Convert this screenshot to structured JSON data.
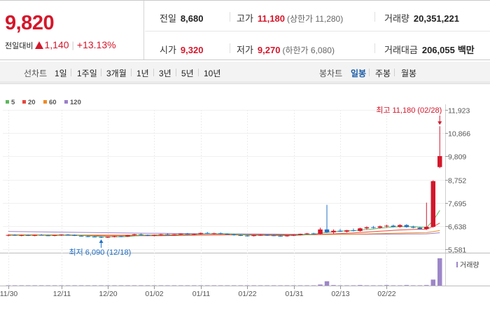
{
  "quote": {
    "price": "9,820",
    "change_label": "전일대비",
    "change_amount": "1,140",
    "change_pct": "+13.13%",
    "prev_close_label": "전일",
    "prev_close": "8,680",
    "high_label": "고가",
    "high": "11,180",
    "upper_limit_label": "(상한가 11,280)",
    "volume_label": "거래량",
    "volume": "20,351,221",
    "open_label": "시가",
    "open": "9,320",
    "low_label": "저가",
    "low": "9,270",
    "lower_limit_label": "(하한가 6,080)",
    "value_label": "거래대금",
    "value": "206,055",
    "value_unit": "백만"
  },
  "toolbar": {
    "line_chart_label": "선차트",
    "line_periods": [
      "1일",
      "1주일",
      "3개월",
      "1년",
      "3년",
      "5년",
      "10년"
    ],
    "candle_chart_label": "봉차트",
    "candle_periods": [
      "일봉",
      "주봉",
      "월봉"
    ],
    "active_candle_period": "일봉"
  },
  "chart_data": {
    "type": "candlestick",
    "moving_average_legend": [
      {
        "name": "5",
        "color": "#5cb85c"
      },
      {
        "name": "20",
        "color": "#e8473e"
      },
      {
        "name": "60",
        "color": "#f08a24"
      },
      {
        "name": "120",
        "color": "#9b7fc8"
      }
    ],
    "y_ticks": [
      "11,923",
      "10,866",
      "9,809",
      "8,752",
      "7,695",
      "6,638",
      "5,581"
    ],
    "ylim": [
      5581,
      11923
    ],
    "x_tick_labels": [
      "11/30",
      "12/11",
      "12/20",
      "01/02",
      "01/11",
      "01/22",
      "01/31",
      "02/13",
      "02/22"
    ],
    "high_annotation": "최고 11,180 (02/28)",
    "low_annotation": "최저 6,090 (12/18)",
    "volume_label": "거래량",
    "up_color": "#d4172b",
    "down_color": "#1f6fc5",
    "candles": [
      {
        "o": 6210,
        "h": 6250,
        "l": 6170,
        "c": 6230
      },
      {
        "o": 6230,
        "h": 6260,
        "l": 6190,
        "c": 6200
      },
      {
        "o": 6200,
        "h": 6240,
        "l": 6170,
        "c": 6220
      },
      {
        "o": 6220,
        "h": 6250,
        "l": 6180,
        "c": 6190
      },
      {
        "o": 6190,
        "h": 6240,
        "l": 6170,
        "c": 6230
      },
      {
        "o": 6230,
        "h": 6270,
        "l": 6200,
        "c": 6210
      },
      {
        "o": 6210,
        "h": 6240,
        "l": 6180,
        "c": 6200
      },
      {
        "o": 6200,
        "h": 6230,
        "l": 6170,
        "c": 6220
      },
      {
        "o": 6220,
        "h": 6260,
        "l": 6190,
        "c": 6250
      },
      {
        "o": 6250,
        "h": 6270,
        "l": 6210,
        "c": 6230
      },
      {
        "o": 6230,
        "h": 6250,
        "l": 6180,
        "c": 6190
      },
      {
        "o": 6190,
        "h": 6220,
        "l": 6150,
        "c": 6170
      },
      {
        "o": 6170,
        "h": 6200,
        "l": 6130,
        "c": 6150
      },
      {
        "o": 6150,
        "h": 6180,
        "l": 6120,
        "c": 6140
      },
      {
        "o": 6140,
        "h": 6170,
        "l": 6090,
        "c": 6110
      },
      {
        "o": 6110,
        "h": 6160,
        "l": 6090,
        "c": 6150
      },
      {
        "o": 6150,
        "h": 6190,
        "l": 6120,
        "c": 6170
      },
      {
        "o": 6170,
        "h": 6200,
        "l": 6130,
        "c": 6160
      },
      {
        "o": 6160,
        "h": 6230,
        "l": 6140,
        "c": 6220
      },
      {
        "o": 6220,
        "h": 6280,
        "l": 6190,
        "c": 6260
      },
      {
        "o": 6260,
        "h": 6290,
        "l": 6210,
        "c": 6230
      },
      {
        "o": 6230,
        "h": 6250,
        "l": 6180,
        "c": 6200
      },
      {
        "o": 6200,
        "h": 6240,
        "l": 6170,
        "c": 6230
      },
      {
        "o": 6230,
        "h": 6280,
        "l": 6200,
        "c": 6260
      },
      {
        "o": 6260,
        "h": 6300,
        "l": 6220,
        "c": 6240
      },
      {
        "o": 6240,
        "h": 6270,
        "l": 6210,
        "c": 6260
      },
      {
        "o": 6260,
        "h": 6300,
        "l": 6230,
        "c": 6280
      },
      {
        "o": 6280,
        "h": 6320,
        "l": 6240,
        "c": 6250
      },
      {
        "o": 6250,
        "h": 6290,
        "l": 6220,
        "c": 6270
      },
      {
        "o": 6270,
        "h": 6340,
        "l": 6250,
        "c": 6320
      },
      {
        "o": 6320,
        "h": 6360,
        "l": 6270,
        "c": 6290
      },
      {
        "o": 6290,
        "h": 6330,
        "l": 6260,
        "c": 6310
      },
      {
        "o": 6310,
        "h": 6340,
        "l": 6260,
        "c": 6280
      },
      {
        "o": 6280,
        "h": 6300,
        "l": 6230,
        "c": 6250
      },
      {
        "o": 6250,
        "h": 6280,
        "l": 6200,
        "c": 6220
      },
      {
        "o": 6220,
        "h": 6250,
        "l": 6180,
        "c": 6200
      },
      {
        "o": 6200,
        "h": 6230,
        "l": 6160,
        "c": 6180
      },
      {
        "o": 6180,
        "h": 6230,
        "l": 6160,
        "c": 6220
      },
      {
        "o": 6220,
        "h": 6260,
        "l": 6190,
        "c": 6230
      },
      {
        "o": 6230,
        "h": 6250,
        "l": 6190,
        "c": 6210
      },
      {
        "o": 6210,
        "h": 6240,
        "l": 6170,
        "c": 6190
      },
      {
        "o": 6190,
        "h": 6220,
        "l": 6150,
        "c": 6170
      },
      {
        "o": 6170,
        "h": 6220,
        "l": 6150,
        "c": 6210
      },
      {
        "o": 6210,
        "h": 6250,
        "l": 6180,
        "c": 6230
      },
      {
        "o": 6230,
        "h": 6290,
        "l": 6210,
        "c": 6280
      },
      {
        "o": 6280,
        "h": 6320,
        "l": 6250,
        "c": 6300
      },
      {
        "o": 6300,
        "h": 6330,
        "l": 6260,
        "c": 6280
      },
      {
        "o": 6280,
        "h": 6560,
        "l": 6260,
        "c": 6480
      },
      {
        "o": 6480,
        "h": 7600,
        "l": 6320,
        "c": 6350
      },
      {
        "o": 6350,
        "h": 6480,
        "l": 6300,
        "c": 6420
      },
      {
        "o": 6420,
        "h": 6500,
        "l": 6360,
        "c": 6380
      },
      {
        "o": 6380,
        "h": 6460,
        "l": 6340,
        "c": 6440
      },
      {
        "o": 6440,
        "h": 6520,
        "l": 6390,
        "c": 6410
      },
      {
        "o": 6410,
        "h": 6560,
        "l": 6380,
        "c": 6530
      },
      {
        "o": 6530,
        "h": 6620,
        "l": 6480,
        "c": 6580
      },
      {
        "o": 6580,
        "h": 6640,
        "l": 6520,
        "c": 6560
      },
      {
        "o": 6560,
        "h": 6660,
        "l": 6520,
        "c": 6620
      },
      {
        "o": 6620,
        "h": 6700,
        "l": 6570,
        "c": 6650
      },
      {
        "o": 6650,
        "h": 6700,
        "l": 6580,
        "c": 6600
      },
      {
        "o": 6600,
        "h": 6720,
        "l": 6560,
        "c": 6680
      },
      {
        "o": 6680,
        "h": 6720,
        "l": 6560,
        "c": 6590
      },
      {
        "o": 6590,
        "h": 6650,
        "l": 6530,
        "c": 6560
      },
      {
        "o": 6560,
        "h": 6600,
        "l": 6480,
        "c": 6500
      },
      {
        "o": 6500,
        "h": 7700,
        "l": 6460,
        "c": 6600
      },
      {
        "o": 6600,
        "h": 8720,
        "l": 6560,
        "c": 8680
      },
      {
        "o": 9320,
        "h": 11180,
        "l": 9270,
        "c": 9820
      }
    ],
    "ma5": [
      6210,
      6215,
      6214,
      6212,
      6214,
      6218,
      6214,
      6211,
      6215,
      6220,
      6222,
      6211,
      6193,
      6176,
      6156,
      6144,
      6146,
      6148,
      6156,
      6182,
      6208,
      6218,
      6228,
      6236,
      6236,
      6242,
      6254,
      6256,
      6262,
      6276,
      6284,
      6290,
      6290,
      6284,
      6272,
      6252,
      6228,
      6214,
      6210,
      6208,
      6206,
      6202,
      6202,
      6206,
      6218,
      6238,
      6260,
      6314,
      6344,
      6378,
      6408,
      6414,
      6424,
      6454,
      6476,
      6500,
      6538,
      6570,
      6596,
      6610,
      6610,
      6606,
      6590,
      6568,
      6880,
      7350
    ],
    "ma20": [
      6220,
      6220,
      6219,
      6218,
      6217,
      6217,
      6216,
      6215,
      6214,
      6213,
      6212,
      6210,
      6207,
      6204,
      6200,
      6197,
      6194,
      6192,
      6191,
      6191,
      6192,
      6193,
      6194,
      6196,
      6199,
      6203,
      6208,
      6213,
      6219,
      6226,
      6232,
      6238,
      6242,
      6245,
      6247,
      6248,
      6247,
      6246,
      6244,
      6242,
      6240,
      6238,
      6236,
      6234,
      6235,
      6238,
      6243,
      6254,
      6268,
      6282,
      6295,
      6309,
      6325,
      6344,
      6362,
      6380,
      6399,
      6419,
      6438,
      6457,
      6470,
      6480,
      6488,
      6494,
      6610,
      6770
    ],
    "ma60": [
      6240,
      6239,
      6238,
      6237,
      6236,
      6235,
      6234,
      6233,
      6232,
      6231,
      6230,
      6229,
      6228,
      6227,
      6226,
      6225,
      6224,
      6223,
      6222,
      6222,
      6221,
      6221,
      6221,
      6221,
      6222,
      6222,
      6223,
      6224,
      6225,
      6226,
      6227,
      6228,
      6229,
      6230,
      6231,
      6232,
      6232,
      6233,
      6233,
      6234,
      6234,
      6235,
      6236,
      6237,
      6238,
      6240,
      6242,
      6246,
      6250,
      6254,
      6258,
      6263,
      6268,
      6274,
      6280,
      6286,
      6292,
      6299,
      6306,
      6313,
      6320,
      6326,
      6332,
      6338,
      6380,
      6430
    ],
    "ma120": [
      6390,
      6386,
      6382,
      6378,
      6374,
      6370,
      6366,
      6362,
      6358,
      6354,
      6350,
      6346,
      6342,
      6338,
      6334,
      6330,
      6326,
      6322,
      6318,
      6315,
      6312,
      6309,
      6306,
      6303,
      6300,
      6298,
      6296,
      6294,
      6292,
      6290,
      6288,
      6286,
      6284,
      6282,
      6280,
      6278,
      6276,
      6274,
      6272,
      6270,
      6268,
      6266,
      6264,
      6262,
      6260,
      6258,
      6256,
      6256,
      6256,
      6256,
      6256,
      6257,
      6258,
      6259,
      6260,
      6262,
      6264,
      6266,
      6268,
      6270,
      6272,
      6274,
      6276,
      6278,
      6300,
      6330
    ],
    "volume": [
      1,
      1,
      1,
      1,
      1,
      1,
      1,
      1,
      1,
      1,
      1,
      1,
      1,
      1,
      1,
      1,
      1,
      1,
      1,
      1,
      1,
      1,
      1,
      1,
      1,
      1,
      1,
      1,
      1,
      1,
      1,
      1,
      1,
      1,
      1,
      1,
      1,
      1,
      1,
      1,
      1,
      1,
      1,
      1,
      1,
      1,
      1,
      4,
      16,
      2,
      1,
      1,
      1,
      2,
      1,
      1,
      1,
      2,
      1,
      1,
      2,
      1,
      1,
      2,
      22,
      100
    ]
  }
}
